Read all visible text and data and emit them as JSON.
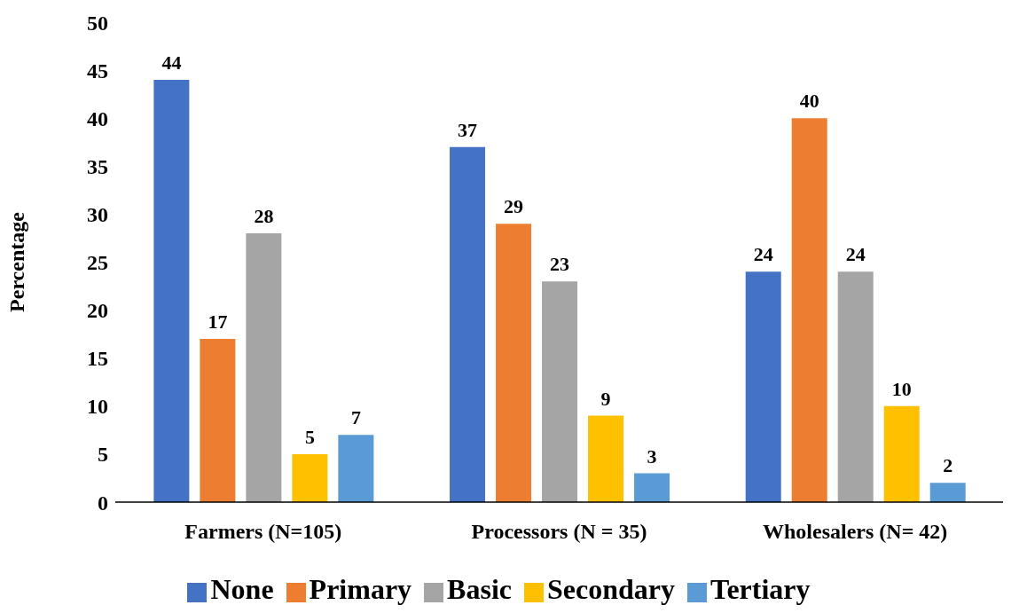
{
  "chart_data": {
    "type": "bar",
    "ylabel": "Percentage",
    "categories": [
      "Farmers (N=105)",
      "Processors (N = 35)",
      "Wholesalers (N= 42)"
    ],
    "series": [
      {
        "name": "None",
        "color": "#4472c4",
        "values": [
          44,
          37,
          24
        ]
      },
      {
        "name": "Primary",
        "color": "#ed7d31",
        "values": [
          17,
          29,
          40
        ]
      },
      {
        "name": "Basic",
        "color": "#a5a5a5",
        "values": [
          28,
          23,
          24
        ]
      },
      {
        "name": "Secondary",
        "color": "#ffc000",
        "values": [
          5,
          9,
          10
        ]
      },
      {
        "name": "Tertiary",
        "color": "#5b9bd5",
        "values": [
          7,
          3,
          2
        ]
      }
    ],
    "ylim": [
      0,
      50
    ],
    "yticks": [
      0,
      5,
      10,
      15,
      20,
      25,
      30,
      35,
      40,
      45,
      50
    ],
    "grid": false,
    "legend": "bottom",
    "data_labels": true
  }
}
